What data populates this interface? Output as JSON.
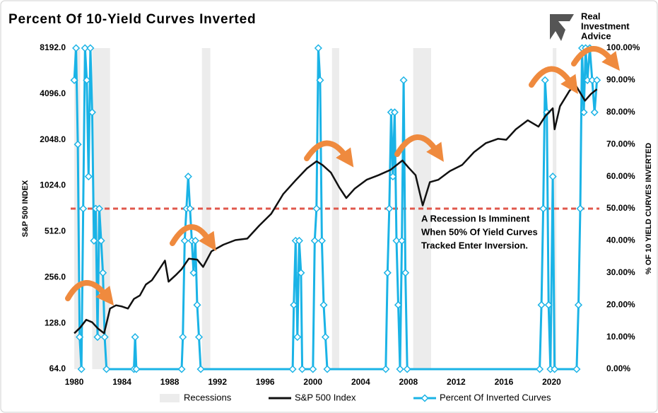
{
  "chart_data": {
    "type": "line",
    "title": "Percent Of 10-Yield Curves Inverted",
    "logo": [
      "Real",
      "Investment",
      "Advice"
    ],
    "ylabel": "S&P 500 INDEX",
    "y2label": "% OF 10 YIELD CURVES INVERTED",
    "annotation": [
      "A Recession Is Imminent",
      "When 50% Of Yield Curves",
      "Tracked Enter Inversion."
    ],
    "xlim": [
      1979.7,
      2024.0
    ],
    "xticks": [
      1980,
      1984,
      1988,
      1992,
      1996,
      2000,
      2004,
      2008,
      2012,
      2016,
      2020
    ],
    "ylog": true,
    "ylim": [
      64,
      8192
    ],
    "yticks": [
      {
        "value": 64,
        "label": "64.0"
      },
      {
        "value": 128,
        "label": "128.0"
      },
      {
        "value": 256,
        "label": "256.0"
      },
      {
        "value": 512,
        "label": "512.0"
      },
      {
        "value": 1024,
        "label": "1024.0"
      },
      {
        "value": 2048,
        "label": "2048.0"
      },
      {
        "value": 4096,
        "label": "4096.0"
      },
      {
        "value": 8192,
        "label": "8192.0"
      }
    ],
    "y2lim": [
      0,
      100
    ],
    "y2ticks": [
      {
        "value": 0,
        "label": "0.00%"
      },
      {
        "value": 10,
        "label": "10.00%"
      },
      {
        "value": 20,
        "label": "20.00%"
      },
      {
        "value": 30,
        "label": "30.00%"
      },
      {
        "value": 40,
        "label": "40.00%"
      },
      {
        "value": 50,
        "label": "50.00%"
      },
      {
        "value": 60,
        "label": "60.00%"
      },
      {
        "value": 70,
        "label": "70.00%"
      },
      {
        "value": 80,
        "label": "80.00%"
      },
      {
        "value": 90,
        "label": "90.00%"
      },
      {
        "value": 100,
        "label": "100.00%"
      }
    ],
    "reference_line": {
      "value": 50,
      "axis": "y2",
      "color": "#e0584c"
    },
    "recessions": {
      "name": "Recessions",
      "color": "#ececec",
      "ranges": [
        [
          1980.0,
          1980.5
        ],
        [
          1981.5,
          1983.0
        ],
        [
          1990.7,
          1991.4
        ],
        [
          2001.6,
          2002.2
        ],
        [
          2008.4,
          2009.9
        ],
        [
          2020.1,
          2020.4
        ]
      ]
    },
    "series": [
      {
        "name": "S&P 500 Index",
        "color": "#111111",
        "x": [
          1980.0,
          1980.5,
          1981.0,
          1981.5,
          1982.0,
          1982.5,
          1983.0,
          1983.5,
          1984.0,
          1984.5,
          1985.0,
          1985.5,
          1986.0,
          1986.5,
          1987.0,
          1987.6,
          1987.9,
          1988.5,
          1989.0,
          1989.6,
          1990.3,
          1990.8,
          1991.5,
          1992.5,
          1993.5,
          1994.5,
          1995.5,
          1996.5,
          1997.5,
          1998.5,
          1999.5,
          2000.3,
          2000.8,
          2001.5,
          2002.2,
          2002.8,
          2003.5,
          2004.5,
          2005.5,
          2006.5,
          2007.5,
          2008.0,
          2008.6,
          2009.2,
          2009.8,
          2010.5,
          2011.5,
          2012.5,
          2013.5,
          2014.5,
          2015.5,
          2016.2,
          2017.0,
          2018.0,
          2018.9,
          2019.5,
          2020.1,
          2020.25,
          2020.7,
          2021.5,
          2022.0,
          2022.8,
          2023.3,
          2023.8
        ],
        "values": [
          110,
          120,
          135,
          130,
          118,
          110,
          160,
          168,
          165,
          160,
          185,
          195,
          230,
          245,
          280,
          330,
          240,
          265,
          290,
          340,
          335,
          300,
          380,
          420,
          450,
          460,
          560,
          670,
          900,
          1100,
          1330,
          1480,
          1400,
          1250,
          1000,
          850,
          980,
          1120,
          1200,
          1300,
          1500,
          1350,
          1200,
          760,
          1080,
          1120,
          1280,
          1400,
          1700,
          1950,
          2080,
          2050,
          2400,
          2750,
          2500,
          2950,
          3300,
          2400,
          3400,
          4300,
          4700,
          3700,
          4100,
          4400
        ]
      },
      {
        "name": "Percent Of Inverted Curves",
        "color": "#1ab3e6",
        "axis": "y2",
        "x": [
          1980.0,
          1980.15,
          1980.3,
          1980.45,
          1980.6,
          1980.75,
          1980.9,
          1981.05,
          1981.2,
          1981.35,
          1981.5,
          1981.65,
          1981.8,
          1981.95,
          1982.1,
          1982.25,
          1982.4,
          1982.55,
          1982.7,
          1985.0,
          1985.1,
          1985.2,
          1989.0,
          1989.1,
          1989.25,
          1989.4,
          1989.55,
          1989.7,
          1989.85,
          1990.0,
          1990.15,
          1990.3,
          1990.45,
          1990.6,
          1998.3,
          1998.4,
          1998.55,
          1998.7,
          1998.85,
          1999.0,
          1999.1,
          2000.0,
          2000.15,
          2000.3,
          2000.45,
          2000.6,
          2000.75,
          2000.9,
          2001.05,
          2001.2,
          2006.1,
          2006.25,
          2006.4,
          2006.55,
          2006.7,
          2006.85,
          2007.0,
          2007.15,
          2007.3,
          2007.45,
          2007.6,
          2007.75,
          2007.9,
          2019.0,
          2019.15,
          2019.3,
          2019.45,
          2019.6,
          2019.75,
          2019.9,
          2020.1,
          2020.25,
          2022.1,
          2022.25,
          2022.4,
          2022.55,
          2022.7,
          2022.85,
          2023.0,
          2023.2,
          2023.4,
          2023.6,
          2023.8
        ],
        "values": [
          90,
          100,
          70,
          10,
          0,
          50,
          100,
          90,
          60,
          100,
          80,
          40,
          50,
          10,
          50,
          40,
          30,
          10,
          0,
          0,
          10,
          0,
          0,
          10,
          40,
          50,
          60,
          50,
          40,
          30,
          40,
          20,
          10,
          0,
          0,
          20,
          40,
          10,
          40,
          30,
          0,
          0,
          40,
          50,
          100,
          90,
          40,
          20,
          10,
          0,
          0,
          30,
          50,
          80,
          60,
          80,
          40,
          20,
          0,
          40,
          90,
          30,
          0,
          0,
          20,
          50,
          90,
          80,
          20,
          0,
          60,
          0,
          0,
          20,
          50,
          100,
          80,
          100,
          90,
          100,
          90,
          80,
          90
        ]
      }
    ]
  }
}
